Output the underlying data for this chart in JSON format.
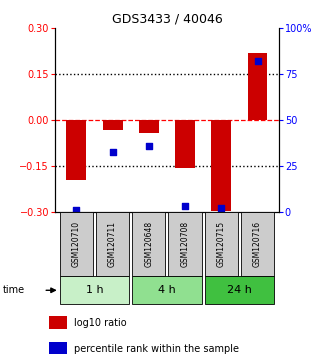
{
  "title": "GDS3433 / 40046",
  "samples": [
    "GSM120710",
    "GSM120711",
    "GSM120648",
    "GSM120708",
    "GSM120715",
    "GSM120716"
  ],
  "log10_ratio": [
    -0.195,
    -0.03,
    -0.04,
    -0.155,
    -0.295,
    0.22
  ],
  "percentile_rank": [
    1.5,
    33,
    36,
    3.5,
    2.5,
    82
  ],
  "groups": [
    {
      "label": "1 h",
      "indices": [
        0,
        1
      ],
      "color": "#c8f0c8"
    },
    {
      "label": "4 h",
      "indices": [
        2,
        3
      ],
      "color": "#90e090"
    },
    {
      "label": "24 h",
      "indices": [
        4,
        5
      ],
      "color": "#40c040"
    }
  ],
  "bar_color": "#cc0000",
  "dot_color": "#0000cc",
  "ylim_left": [
    -0.3,
    0.3
  ],
  "ylim_right": [
    0,
    100
  ],
  "yticks_left": [
    -0.3,
    -0.15,
    0,
    0.15,
    0.3
  ],
  "yticks_right": [
    0,
    25,
    50,
    75,
    100
  ],
  "hlines": [
    -0.15,
    0,
    0.15
  ],
  "hline_styles": [
    "dotted",
    "dashed",
    "dotted"
  ],
  "hline_colors": [
    "black",
    "red",
    "black"
  ],
  "bar_width": 0.55,
  "background_color": "#ffffff",
  "sample_box_color": "#cccccc",
  "legend_labels": [
    "log10 ratio",
    "percentile rank within the sample"
  ]
}
